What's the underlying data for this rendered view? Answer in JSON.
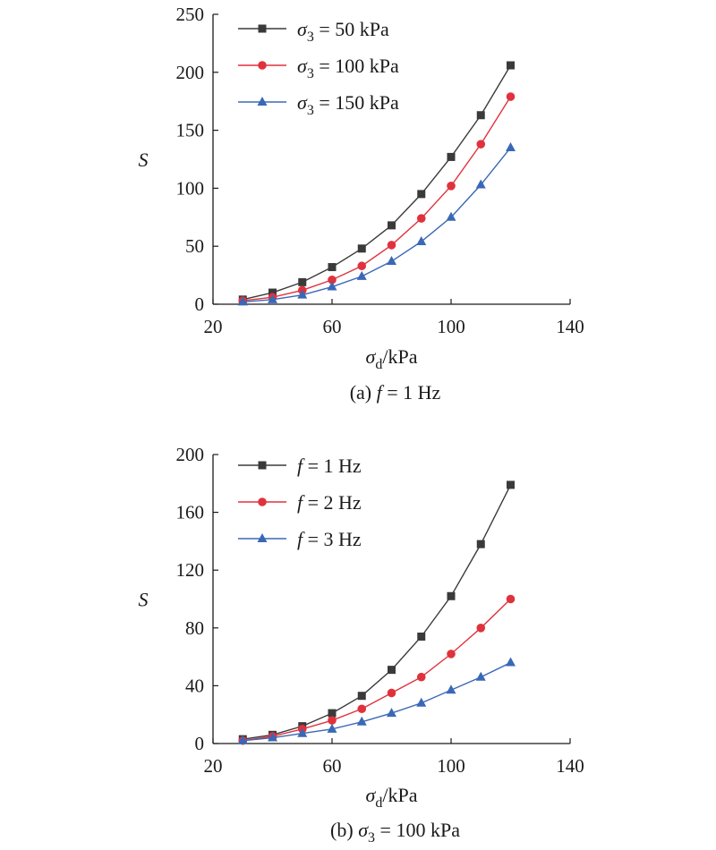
{
  "chart_data": [
    {
      "id": "a",
      "type": "line",
      "caption": {
        "prefix": "(a) ",
        "var": "f",
        "rest": " = 1 Hz"
      },
      "xlabel": {
        "var": "σ",
        "sub": "d",
        "rest": "/kPa"
      },
      "ylabel": "S",
      "xlim": [
        20,
        140
      ],
      "ylim": [
        0,
        250
      ],
      "xticks": [
        20,
        60,
        100,
        140
      ],
      "yticks": [
        0,
        50,
        100,
        150,
        200,
        250
      ],
      "x": [
        30,
        40,
        50,
        60,
        70,
        80,
        90,
        100,
        110,
        120
      ],
      "legend_loc": "top-left",
      "series": [
        {
          "legend": {
            "var": "σ",
            "sub": "3",
            "rest": " = 50 kPa"
          },
          "marker": "square",
          "color": "#3a3a3a",
          "values": [
            4,
            10,
            19,
            32,
            48,
            68,
            95,
            127,
            163,
            206
          ]
        },
        {
          "legend": {
            "var": "σ",
            "sub": "3",
            "rest": " = 100 kPa"
          },
          "marker": "circle",
          "color": "#e0323c",
          "values": [
            3,
            6,
            12,
            21,
            33,
            51,
            74,
            102,
            138,
            179
          ]
        },
        {
          "legend": {
            "var": "σ",
            "sub": "3",
            "rest": " = 150 kPa"
          },
          "marker": "triangle",
          "color": "#3a68b7",
          "values": [
            2,
            4,
            8,
            15,
            24,
            37,
            54,
            75,
            103,
            135
          ]
        }
      ]
    },
    {
      "id": "b",
      "type": "line",
      "caption": {
        "prefix": "(b) ",
        "var": "σ",
        "sub": "3",
        "rest": " = 100 kPa"
      },
      "xlabel": {
        "var": "σ",
        "sub": "d",
        "rest": "/kPa"
      },
      "ylabel": "S",
      "xlim": [
        20,
        140
      ],
      "ylim": [
        0,
        200
      ],
      "xticks": [
        20,
        60,
        100,
        140
      ],
      "yticks": [
        0,
        40,
        80,
        120,
        160,
        200
      ],
      "x": [
        30,
        40,
        50,
        60,
        70,
        80,
        90,
        100,
        110,
        120
      ],
      "legend_loc": "top-left",
      "series": [
        {
          "legend": {
            "var": "f",
            "sub": "",
            "rest": " = 1 Hz"
          },
          "marker": "square",
          "color": "#3a3a3a",
          "values": [
            3,
            6,
            12,
            21,
            33,
            51,
            74,
            102,
            138,
            179
          ]
        },
        {
          "legend": {
            "var": "f",
            "sub": "",
            "rest": " = 2 Hz"
          },
          "marker": "circle",
          "color": "#e0323c",
          "values": [
            2,
            5,
            10,
            16,
            24,
            35,
            46,
            62,
            80,
            100
          ]
        },
        {
          "legend": {
            "var": "f",
            "sub": "",
            "rest": " = 3 Hz"
          },
          "marker": "triangle",
          "color": "#3a68b7",
          "values": [
            2,
            4,
            7,
            10,
            15,
            21,
            28,
            37,
            46,
            56
          ]
        }
      ]
    }
  ]
}
